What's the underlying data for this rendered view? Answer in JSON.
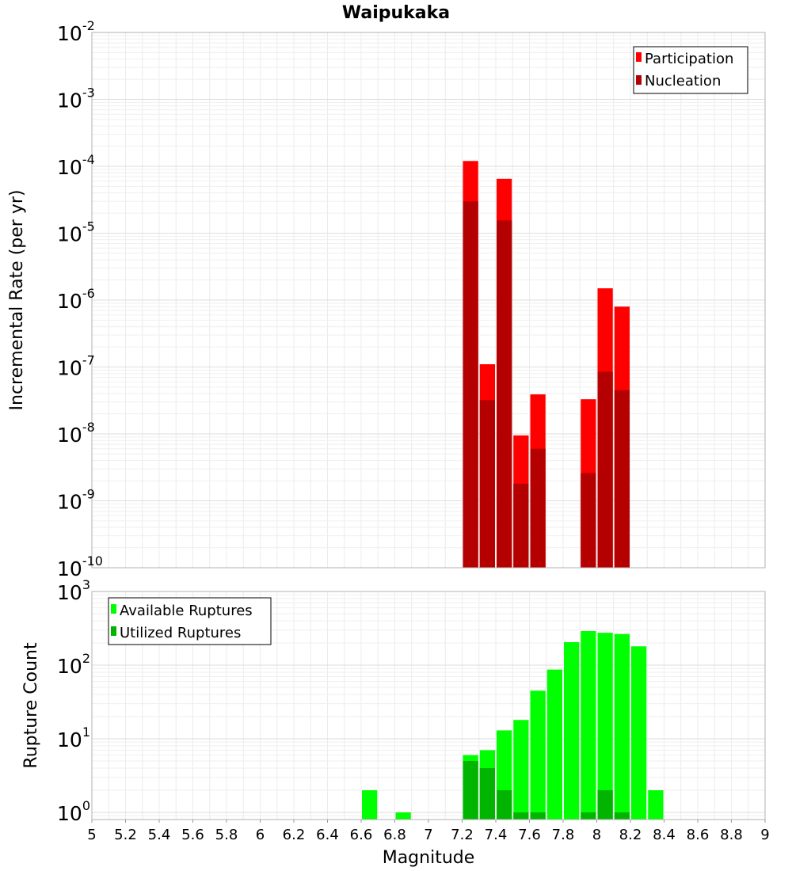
{
  "chart_data": [
    {
      "type": "bar",
      "title": "Waipukaka",
      "xlabel": "",
      "ylabel": "Incremental Rate (per yr)",
      "log_y": true,
      "ylim": [
        1e-10,
        0.01
      ],
      "xlim": [
        5,
        9
      ],
      "bar_width": 0.1,
      "grid": true,
      "legend": "top-right",
      "y_ticks": [
        {
          "base": "10",
          "exp": "-2"
        },
        {
          "base": "10",
          "exp": "-3"
        },
        {
          "base": "10",
          "exp": "-4"
        },
        {
          "base": "10",
          "exp": "-5"
        },
        {
          "base": "10",
          "exp": "-6"
        },
        {
          "base": "10",
          "exp": "-7"
        },
        {
          "base": "10",
          "exp": "-8"
        },
        {
          "base": "10",
          "exp": "-9"
        },
        {
          "base": "10",
          "exp": "-10"
        }
      ],
      "series": [
        {
          "name": "Participation",
          "color": "#ff0000",
          "points": [
            {
              "x": 7.25,
              "y": 0.00012
            },
            {
              "x": 7.35,
              "y": 1.1e-07
            },
            {
              "x": 7.45,
              "y": 6.5e-05
            },
            {
              "x": 7.55,
              "y": 9.5e-09
            },
            {
              "x": 7.65,
              "y": 3.9e-08
            },
            {
              "x": 7.95,
              "y": 3.3e-08
            },
            {
              "x": 8.05,
              "y": 1.5e-06
            },
            {
              "x": 8.15,
              "y": 8e-07
            }
          ]
        },
        {
          "name": "Nucleation",
          "color": "#b40000",
          "points": [
            {
              "x": 7.25,
              "y": 3e-05
            },
            {
              "x": 7.35,
              "y": 3.2e-08
            },
            {
              "x": 7.45,
              "y": 1.55e-05
            },
            {
              "x": 7.55,
              "y": 1.8e-09
            },
            {
              "x": 7.65,
              "y": 6e-09
            },
            {
              "x": 7.95,
              "y": 2.6e-09
            },
            {
              "x": 8.05,
              "y": 8.5e-08
            },
            {
              "x": 8.15,
              "y": 4.5e-08
            }
          ]
        }
      ]
    },
    {
      "type": "bar",
      "xlabel": "Magnitude",
      "ylabel": "Rupture Count",
      "log_y": true,
      "ylim": [
        0.8,
        1000
      ],
      "xlim": [
        5,
        9
      ],
      "bar_width": 0.1,
      "grid": true,
      "legend": "top-left",
      "x_ticks": [
        "5",
        "5.2",
        "5.4",
        "5.6",
        "5.8",
        "6",
        "6.2",
        "6.4",
        "6.6",
        "6.8",
        "7",
        "7.2",
        "7.4",
        "7.6",
        "7.8",
        "8",
        "8.2",
        "8.4",
        "8.6",
        "8.8",
        "9"
      ],
      "y_ticks": [
        {
          "base": "10",
          "exp": "3"
        },
        {
          "base": "10",
          "exp": "2"
        },
        {
          "base": "10",
          "exp": "1"
        },
        {
          "base": "10",
          "exp": "0"
        }
      ],
      "series": [
        {
          "name": "Available Ruptures",
          "color": "#00ff00",
          "points": [
            {
              "x": 6.65,
              "y": 2
            },
            {
              "x": 6.85,
              "y": 1
            },
            {
              "x": 7.25,
              "y": 6
            },
            {
              "x": 7.35,
              "y": 7
            },
            {
              "x": 7.45,
              "y": 13
            },
            {
              "x": 7.55,
              "y": 18
            },
            {
              "x": 7.65,
              "y": 45
            },
            {
              "x": 7.75,
              "y": 87
            },
            {
              "x": 7.85,
              "y": 205
            },
            {
              "x": 7.95,
              "y": 290
            },
            {
              "x": 8.05,
              "y": 275
            },
            {
              "x": 8.15,
              "y": 265
            },
            {
              "x": 8.25,
              "y": 180
            },
            {
              "x": 8.35,
              "y": 2
            }
          ]
        },
        {
          "name": "Utilized Ruptures",
          "color": "#00b400",
          "points": [
            {
              "x": 7.25,
              "y": 5
            },
            {
              "x": 7.35,
              "y": 4
            },
            {
              "x": 7.45,
              "y": 2
            },
            {
              "x": 7.55,
              "y": 1
            },
            {
              "x": 7.65,
              "y": 1
            },
            {
              "x": 7.95,
              "y": 1
            },
            {
              "x": 8.05,
              "y": 2
            },
            {
              "x": 8.15,
              "y": 1
            }
          ]
        }
      ]
    }
  ]
}
